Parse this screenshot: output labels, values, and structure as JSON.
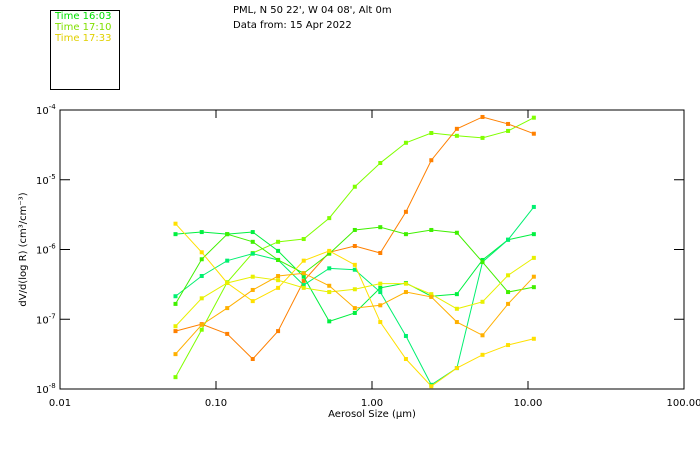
{
  "header": {
    "location": "PML, N 50 22', W 04 08', Alt 0m",
    "date": "Data from: 15 Apr 2022"
  },
  "legend": [
    {
      "label": "Time 16:03",
      "color": "#00e000"
    },
    {
      "label": "Time 17:10",
      "color": "#80e000"
    },
    {
      "label": "Time 17:33",
      "color": "#e0d000"
    }
  ],
  "chart_data": {
    "type": "line",
    "xscale": "log",
    "yscale": "log",
    "xlabel": "Aerosol Size (µm)",
    "ylabel": "dV/d(log R)  (cm³/cm⁻³)",
    "xlim": [
      0.01,
      100
    ],
    "ylim_log10": [
      -8,
      -4
    ],
    "x_ticks": [
      "0.01",
      "0.10",
      "1.00",
      "10.00",
      "100.00"
    ],
    "y_ticks": [
      {
        "base": "10",
        "exp": "-4"
      },
      {
        "base": "10",
        "exp": "-5"
      },
      {
        "base": "10",
        "exp": "-6"
      },
      {
        "base": "10",
        "exp": "-7"
      },
      {
        "base": "10",
        "exp": "-8"
      }
    ],
    "x": [
      0.055,
      0.081,
      0.118,
      0.172,
      0.25,
      0.365,
      0.532,
      0.776,
      1.13,
      1.65,
      2.4,
      3.5,
      5.11,
      7.45,
      10.9
    ],
    "series": [
      {
        "color": "#80ff00",
        "log10_values": [
          -7.83,
          -7.15,
          -6.47,
          -6.05,
          -5.89,
          -5.85,
          -5.55,
          -5.1,
          -4.76,
          -4.47,
          -4.33,
          -4.37,
          -4.4,
          -4.3,
          -4.11
        ]
      },
      {
        "color": "#ff8000",
        "log10_values": [
          -7.17,
          -7.07,
          -7.21,
          -7.57,
          -7.17,
          -6.45,
          -6.04,
          -5.95,
          -6.05,
          -5.46,
          -4.72,
          -4.27,
          -4.1,
          -4.2,
          -4.34
        ]
      },
      {
        "color": "#00f040",
        "log10_values": [
          -5.78,
          -5.75,
          -5.78,
          -5.75,
          -6.02,
          -6.39,
          -7.03,
          -6.91,
          -6.55,
          -6.48,
          -6.67,
          -6.64,
          -6.15,
          -5.86,
          -5.78
        ]
      },
      {
        "color": "#00f070",
        "log10_values": [
          -6.67,
          -6.38,
          -6.16,
          -6.06,
          -6.15,
          -6.51,
          -6.27,
          -6.29,
          -6.61,
          -7.24,
          -7.94,
          -7.7,
          -6.18,
          -5.86,
          -5.39
        ]
      },
      {
        "color": "#40f000",
        "log10_values": [
          -6.78,
          -6.14,
          -5.78,
          -5.89,
          -6.15,
          -6.34,
          -6.06,
          -5.72,
          -5.68,
          -5.78,
          -5.72,
          -5.76,
          -6.18,
          -6.61,
          -6.54
        ]
      },
      {
        "color": "#ffe000",
        "log10_values": [
          -5.63,
          -6.04,
          -6.48,
          -6.74,
          -6.55,
          -6.16,
          -6.02,
          -6.22,
          -7.04,
          -7.57,
          -7.96,
          -7.7,
          -7.51,
          -7.37,
          -7.28
        ]
      },
      {
        "color": "#e8f000",
        "log10_values": [
          -7.1,
          -6.7,
          -6.48,
          -6.39,
          -6.44,
          -6.55,
          -6.61,
          -6.57,
          -6.49,
          -6.49,
          -6.64,
          -6.85,
          -6.75,
          -6.37,
          -6.12
        ]
      },
      {
        "color": "#ffb000",
        "log10_values": [
          -7.5,
          -7.08,
          -6.84,
          -6.58,
          -6.38,
          -6.34,
          -6.52,
          -6.84,
          -6.8,
          -6.61,
          -6.68,
          -7.04,
          -7.23,
          -6.78,
          -6.39
        ]
      }
    ]
  }
}
